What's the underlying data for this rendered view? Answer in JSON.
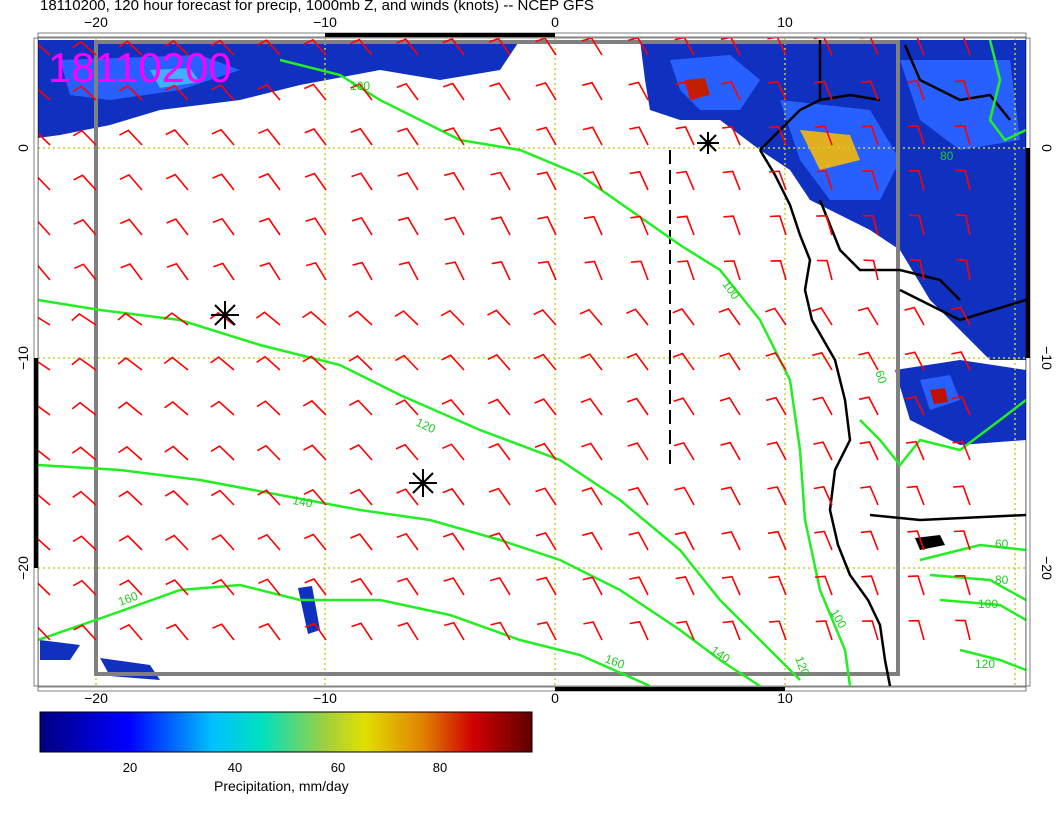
{
  "title": "18110200, 120 hour forecast for precip, 1000mb Z, and winds (knots) -- NCEP GFS",
  "date_stamp": "18110200",
  "axes": {
    "top_ticks": [
      "−20",
      "−10",
      "0",
      "10"
    ],
    "bottom_ticks": [
      "−20",
      "−10",
      "0",
      "10"
    ],
    "left_ticks": [
      "0",
      "−10",
      "−20"
    ],
    "right_ticks": [
      "0",
      "−10",
      "−20"
    ]
  },
  "contour_labels": [
    "100",
    "100",
    "120",
    "140",
    "140",
    "160",
    "160",
    "100",
    "120",
    "60",
    "80",
    "100",
    "120",
    "80",
    "60"
  ],
  "colorbar": {
    "ticks": [
      "20",
      "40",
      "60",
      "80"
    ],
    "label": "Precipitation, mm/day"
  },
  "colors": {
    "contour": "#22ee22",
    "wind_barb": "#ff0000",
    "stamp": "#ff00ff",
    "grid": "#cccc33"
  }
}
